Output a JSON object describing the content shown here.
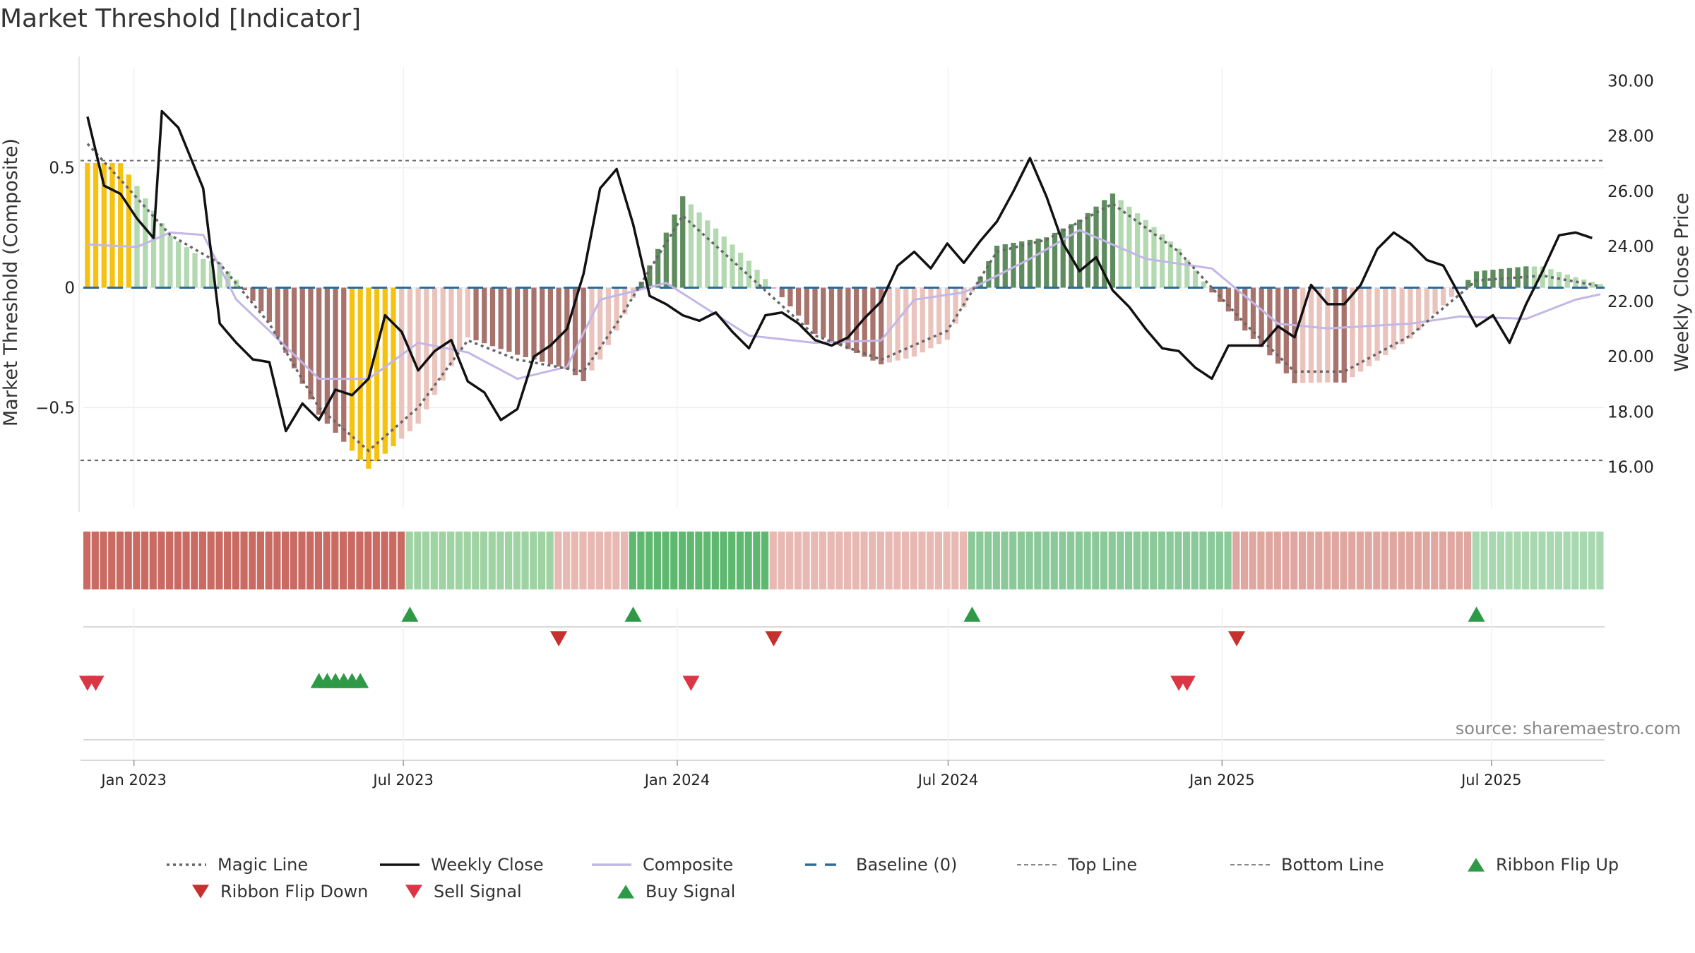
{
  "title": "Market Threshold [Indicator]",
  "source": "source: sharemaestro.com",
  "colors": {
    "strong_pos": "#5e8c5e",
    "weak_pos": "#b3d9b0",
    "strong_neg": "#a8736d",
    "weak_neg": "#ebc3bd",
    "extreme": "#f5c211",
    "close": "#111111",
    "composite": "#c2b7e6",
    "magic": "#666666",
    "baseline": "#2e6a9a",
    "threshold": "#666666",
    "flip_up": "#2e9a48",
    "flip_down": "#c8302d",
    "sell": "#dc3545",
    "buy": "#2e9a48"
  },
  "chart_data": {
    "type": "bar",
    "title": "Market Threshold [Indicator]",
    "ylabel": "Market Threshold (Composite)",
    "y2label": "Weekly Close Price",
    "ylim": [
      -0.92,
      0.92
    ],
    "y2lim": [
      14.5,
      30.5
    ],
    "yticks": [
      "0.5",
      "0",
      "−0.5"
    ],
    "yticks_values": [
      0.5,
      0,
      -0.5
    ],
    "y2ticks": [
      "30.00",
      "28.00",
      "26.00",
      "24.00",
      "22.00",
      "20.00",
      "18.00",
      "16.00"
    ],
    "y2ticks_values": [
      30,
      28,
      26,
      24,
      22,
      20,
      18,
      16
    ],
    "xticks": [
      {
        "label": "Jan 2023",
        "date": "2023-01-01"
      },
      {
        "label": "Jul 2023",
        "date": "2023-07-01"
      },
      {
        "label": "Jan 2024",
        "date": "2024-01-01"
      },
      {
        "label": "Jul 2024",
        "date": "2024-07-01"
      },
      {
        "label": "Jan 2025",
        "date": "2025-01-01"
      },
      {
        "label": "Jul 2025",
        "date": "2025-07-01"
      }
    ],
    "x_start": "2022-11-28",
    "x_end": "2025-09-15",
    "top_line": 0.53,
    "bottom_line": -0.72,
    "baseline": 0,
    "grid": true,
    "legend_placement": "bottom",
    "legend": [
      {
        "label": "Magic Line",
        "kind": "dotted",
        "color": "#666666"
      },
      {
        "label": "Weekly Close",
        "kind": "solid",
        "color": "#111111"
      },
      {
        "label": "Composite",
        "kind": "solid",
        "color": "#c2b7e6"
      },
      {
        "label": "Baseline (0)",
        "kind": "dashed",
        "color": "#2e6a9a"
      },
      {
        "label": "Top Line",
        "kind": "dashed-fine",
        "color": "#888888"
      },
      {
        "label": "Bottom Line",
        "kind": "dashed-fine",
        "color": "#888888"
      },
      {
        "label": "Ribbon Flip Up",
        "kind": "tri-up",
        "color": "#2e9a48"
      },
      {
        "label": "Ribbon Flip Down",
        "kind": "tri-down",
        "color": "#c8302d"
      },
      {
        "label": "Sell Signal",
        "kind": "tri-down",
        "color": "#dc3545"
      },
      {
        "label": "Buy Signal",
        "kind": "tri-up",
        "color": "#2e9a48"
      }
    ],
    "composite_keypoints": [
      [
        0,
        0.18
      ],
      [
        6,
        0.17
      ],
      [
        10,
        0.23
      ],
      [
        14,
        0.22
      ],
      [
        18,
        -0.05
      ],
      [
        22,
        -0.18
      ],
      [
        28,
        -0.38
      ],
      [
        34,
        -0.38
      ],
      [
        40,
        -0.23
      ],
      [
        46,
        -0.27
      ],
      [
        52,
        -0.38
      ],
      [
        58,
        -0.33
      ],
      [
        62,
        -0.05
      ],
      [
        70,
        0.02
      ],
      [
        80,
        -0.2
      ],
      [
        88,
        -0.23
      ],
      [
        96,
        -0.22
      ],
      [
        100,
        -0.05
      ],
      [
        106,
        -0.02
      ],
      [
        114,
        0.12
      ],
      [
        120,
        0.24
      ],
      [
        128,
        0.12
      ],
      [
        136,
        0.08
      ],
      [
        144,
        -0.15
      ],
      [
        150,
        -0.17
      ],
      [
        160,
        -0.15
      ],
      [
        166,
        -0.12
      ],
      [
        174,
        -0.13
      ],
      [
        180,
        -0.05
      ],
      [
        184,
        -0.02
      ]
    ],
    "magic_keypoints": [
      [
        0,
        0.6
      ],
      [
        4,
        0.45
      ],
      [
        10,
        0.22
      ],
      [
        16,
        0.1
      ],
      [
        22,
        -0.15
      ],
      [
        28,
        -0.5
      ],
      [
        34,
        -0.68
      ],
      [
        40,
        -0.5
      ],
      [
        46,
        -0.22
      ],
      [
        52,
        -0.3
      ],
      [
        60,
        -0.35
      ],
      [
        64,
        -0.15
      ],
      [
        72,
        0.3
      ],
      [
        80,
        0.05
      ],
      [
        88,
        -0.2
      ],
      [
        96,
        -0.3
      ],
      [
        104,
        -0.18
      ],
      [
        110,
        0.15
      ],
      [
        116,
        0.2
      ],
      [
        124,
        0.35
      ],
      [
        132,
        0.15
      ],
      [
        140,
        -0.15
      ],
      [
        146,
        -0.35
      ],
      [
        152,
        -0.35
      ],
      [
        160,
        -0.2
      ],
      [
        168,
        0.03
      ],
      [
        176,
        0.05
      ],
      [
        184,
        0.0
      ]
    ],
    "close_keypoints": [
      [
        0,
        28.7
      ],
      [
        2,
        26.2
      ],
      [
        4,
        25.9
      ],
      [
        6,
        25.0
      ],
      [
        8,
        24.3
      ],
      [
        9,
        28.9
      ],
      [
        11,
        28.3
      ],
      [
        14,
        26.1
      ],
      [
        16,
        21.2
      ],
      [
        18,
        20.5
      ],
      [
        20,
        19.9
      ],
      [
        22,
        19.8
      ],
      [
        24,
        17.3
      ],
      [
        26,
        18.3
      ],
      [
        28,
        17.7
      ],
      [
        30,
        18.8
      ],
      [
        32,
        18.6
      ],
      [
        34,
        19.2
      ],
      [
        36,
        21.5
      ],
      [
        38,
        20.9
      ],
      [
        40,
        19.5
      ],
      [
        42,
        20.2
      ],
      [
        44,
        20.6
      ],
      [
        46,
        19.1
      ],
      [
        48,
        18.7
      ],
      [
        50,
        17.7
      ],
      [
        52,
        18.1
      ],
      [
        54,
        20.0
      ],
      [
        56,
        20.4
      ],
      [
        58,
        21.0
      ],
      [
        60,
        23.0
      ],
      [
        62,
        26.1
      ],
      [
        64,
        26.8
      ],
      [
        66,
        24.8
      ],
      [
        68,
        22.2
      ],
      [
        70,
        21.9
      ],
      [
        72,
        21.5
      ],
      [
        74,
        21.3
      ],
      [
        76,
        21.6
      ],
      [
        78,
        20.9
      ],
      [
        80,
        20.3
      ],
      [
        82,
        21.5
      ],
      [
        84,
        21.6
      ],
      [
        86,
        21.2
      ],
      [
        88,
        20.6
      ],
      [
        90,
        20.4
      ],
      [
        92,
        20.7
      ],
      [
        94,
        21.4
      ],
      [
        96,
        22.0
      ],
      [
        98,
        23.3
      ],
      [
        100,
        23.8
      ],
      [
        102,
        23.2
      ],
      [
        104,
        24.1
      ],
      [
        106,
        23.4
      ],
      [
        108,
        24.2
      ],
      [
        110,
        24.9
      ],
      [
        112,
        26.0
      ],
      [
        114,
        27.2
      ],
      [
        116,
        25.8
      ],
      [
        118,
        24.1
      ],
      [
        120,
        23.1
      ],
      [
        122,
        23.6
      ],
      [
        124,
        22.4
      ],
      [
        126,
        21.8
      ],
      [
        128,
        21.0
      ],
      [
        130,
        20.3
      ],
      [
        132,
        20.2
      ],
      [
        134,
        19.6
      ],
      [
        136,
        19.2
      ],
      [
        138,
        20.4
      ],
      [
        140,
        20.4
      ],
      [
        142,
        20.4
      ],
      [
        144,
        21.1
      ],
      [
        146,
        20.7
      ],
      [
        148,
        22.6
      ],
      [
        150,
        21.9
      ],
      [
        152,
        21.9
      ],
      [
        154,
        22.6
      ],
      [
        156,
        23.9
      ],
      [
        158,
        24.5
      ],
      [
        160,
        24.1
      ],
      [
        162,
        23.5
      ],
      [
        164,
        23.3
      ],
      [
        166,
        22.2
      ],
      [
        168,
        21.1
      ],
      [
        170,
        21.5
      ],
      [
        172,
        20.5
      ],
      [
        174,
        21.9
      ],
      [
        176,
        23.1
      ],
      [
        178,
        24.4
      ],
      [
        180,
        24.5
      ],
      [
        182,
        24.3
      ]
    ],
    "ribbon": {
      "rows": 1,
      "segments": [
        {
          "from": 0,
          "to": 39,
          "color": "#c96a63"
        },
        {
          "from": 39,
          "to": 57,
          "color": "#9fd3a3"
        },
        {
          "from": 57,
          "to": 66,
          "color": "#e8b8b3"
        },
        {
          "from": 66,
          "to": 83,
          "color": "#5fb870"
        },
        {
          "from": 83,
          "to": 107,
          "color": "#e8b8b3"
        },
        {
          "from": 107,
          "to": 139,
          "color": "#8bc99a"
        },
        {
          "from": 139,
          "to": 168,
          "color": "#e0a7a1"
        },
        {
          "from": 168,
          "to": 184,
          "color": "#a8d8b0"
        }
      ]
    },
    "ribbon_flip_up_weeks": [
      39,
      66,
      107,
      168
    ],
    "ribbon_flip_down_weeks": [
      57,
      83,
      139
    ],
    "buy_signal_weeks": [
      28,
      29,
      30,
      31,
      32,
      33
    ],
    "sell_signal_weeks": [
      0,
      1,
      73,
      132,
      133
    ]
  }
}
